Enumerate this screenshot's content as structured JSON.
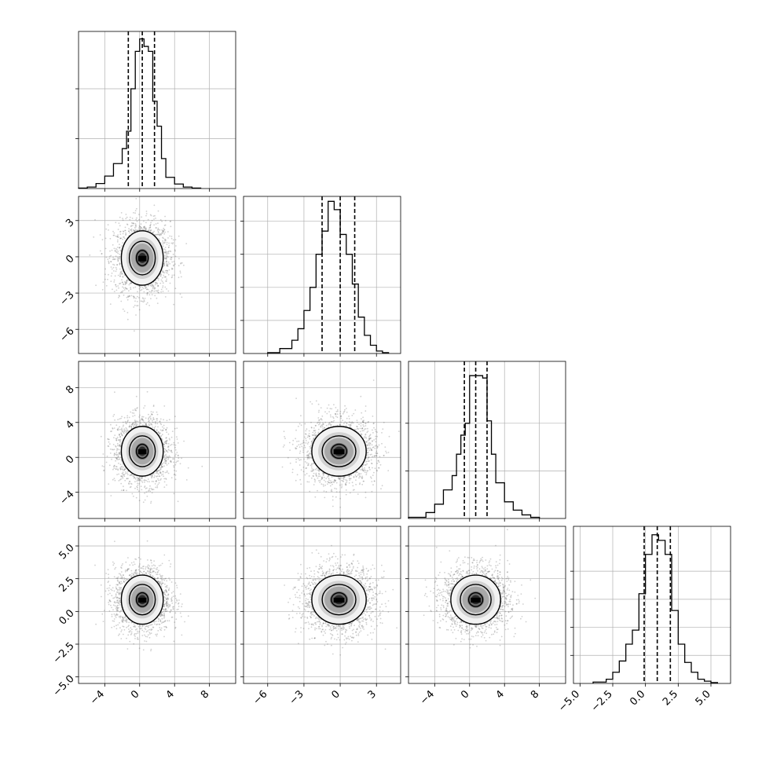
{
  "chart_data": {
    "type": "corner",
    "n_params": 4,
    "grid": true,
    "params": [
      {
        "range": [
          -7,
          11
        ],
        "ticks": [
          -4,
          0,
          4,
          8
        ],
        "tick_labels": [
          "−4",
          "0",
          "4",
          "8"
        ],
        "quantiles": [
          -1.3,
          0.3,
          1.7
        ],
        "hist": {
          "edges": [
            -7,
            -6,
            -5,
            -4,
            -3,
            -2,
            -1.5,
            -1,
            -0.5,
            0,
            0.5,
            1,
            1.5,
            2,
            2.5,
            3,
            4,
            5,
            6,
            7
          ],
          "counts": [
            0.02,
            0.06,
            0.2,
            0.5,
            1.0,
            1.6,
            2.3,
            4.0,
            5.5,
            6.0,
            5.7,
            5.5,
            3.5,
            2.5,
            1.2,
            0.45,
            0.18,
            0.06,
            0.02
          ],
          "ylim": [
            0,
            6.3
          ],
          "yticks": [
            2,
            4
          ]
        }
      },
      {
        "range": [
          -8,
          5
        ],
        "ticks": [
          -6,
          -3,
          0,
          3
        ],
        "tick_labels": [
          "−6",
          "−3",
          "0",
          "3"
        ],
        "quantiles": [
          -1.5,
          0,
          1.2
        ],
        "hist": {
          "edges": [
            -6,
            -5,
            -4,
            -3.5,
            -3,
            -2.5,
            -2,
            -1.5,
            -1,
            -0.5,
            0,
            0.5,
            1,
            1.5,
            2,
            2.5,
            3,
            3.5,
            4
          ],
          "counts": [
            0.05,
            0.3,
            0.8,
            1.5,
            2.6,
            4.0,
            6.0,
            7.4,
            9.2,
            8.7,
            7.2,
            6.0,
            4.2,
            2.2,
            1.1,
            0.5,
            0.15,
            0.05
          ],
          "ylim": [
            0,
            9.5
          ],
          "yticks": [
            2,
            4,
            6,
            8
          ]
        }
      },
      {
        "range": [
          -7,
          11
        ],
        "ticks": [
          -4,
          0,
          4,
          8
        ],
        "tick_labels": [
          "−4",
          "0",
          "4",
          "8"
        ],
        "quantiles": [
          -0.6,
          0.7,
          2.0
        ],
        "hist": {
          "edges": [
            -7,
            -5,
            -4,
            -3,
            -2,
            -1.5,
            -1,
            -0.5,
            0,
            0.5,
            1,
            1.5,
            2,
            2.5,
            3,
            4,
            5,
            6,
            7,
            8
          ],
          "counts": [
            0.05,
            0.25,
            0.6,
            1.2,
            1.8,
            2.7,
            3.5,
            4.0,
            6.0,
            6.0,
            6.0,
            5.9,
            4.1,
            2.7,
            1.5,
            0.7,
            0.35,
            0.15,
            0.05
          ],
          "ylim": [
            0,
            6.6
          ],
          "yticks": [
            2,
            4
          ]
        }
      },
      {
        "range": [
          -5.5,
          6.5
        ],
        "ticks": [
          -5,
          -2.5,
          0,
          2.5,
          5
        ],
        "tick_labels": [
          "−5.0",
          "−2.5",
          "0.0",
          "2.5",
          "5.0"
        ],
        "quantiles": [
          -0.1,
          0.9,
          1.9
        ],
        "hist": {
          "edges": [
            -4,
            -3,
            -2.5,
            -2,
            -1.5,
            -1,
            -0.5,
            0,
            0.5,
            1,
            1.5,
            2,
            2.5,
            3,
            3.5,
            4,
            4.5,
            5,
            5.5
          ],
          "counts": [
            0.05,
            0.15,
            0.4,
            0.8,
            1.4,
            1.9,
            3.2,
            4.6,
            5.3,
            5.1,
            4.6,
            2.6,
            1.4,
            0.75,
            0.4,
            0.15,
            0.08,
            0.03
          ],
          "ylim": [
            0,
            5.6
          ],
          "yticks": [
            1,
            2,
            3,
            4
          ]
        }
      }
    ],
    "scatter": {
      "points": 2000,
      "means": [
        0.3,
        -0.1,
        0.7,
        0.9
      ],
      "sds": [
        1.6,
        1.5,
        1.9,
        1.25
      ],
      "contour_levels": [
        0.39,
        0.86,
        1.39
      ],
      "point_color": "#555555"
    },
    "colors": {
      "line": "#000000",
      "grid": "#b0b0b0",
      "dots": "#555555"
    }
  }
}
